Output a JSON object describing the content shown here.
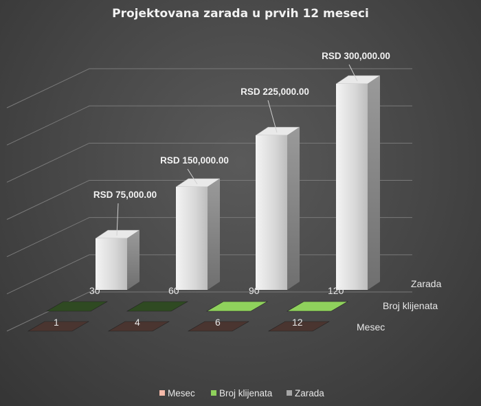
{
  "chart_data": {
    "type": "bar",
    "title": "Projektovana zarada u prvih 12 meseci",
    "series": [
      {
        "name": "Mesec",
        "values": [
          1,
          4,
          6,
          12
        ],
        "color": "#4a3530",
        "labels": [
          "1",
          "4",
          "6",
          "12"
        ]
      },
      {
        "name": "Broj klijenata",
        "values": [
          30,
          60,
          90,
          120
        ],
        "colors": [
          "#2f4a22",
          "#2f4a22",
          "#8fd15c",
          "#8fd15c"
        ],
        "labels": [
          "30",
          "60",
          "90",
          "120"
        ]
      },
      {
        "name": "Zarada",
        "values": [
          75000,
          150000,
          225000,
          300000
        ],
        "color": "#cfcfcf",
        "labels": [
          "RSD 75,000.00",
          "RSD 150,000.00",
          "RSD 225,000.00",
          "RSD 300,000.00"
        ]
      }
    ],
    "legend": {
      "position": "bottom",
      "items": [
        {
          "label": "Mesec",
          "color": "#f4b9a9"
        },
        {
          "label": "Broj klijenata",
          "color": "#8fd15c"
        },
        {
          "label": "Zarada",
          "color": "#a6a6a6"
        }
      ]
    },
    "depth_labels": [
      "Zarada",
      "Broj klijenata",
      "Mesec"
    ],
    "ylim": [
      0,
      300000
    ],
    "grid": true
  }
}
